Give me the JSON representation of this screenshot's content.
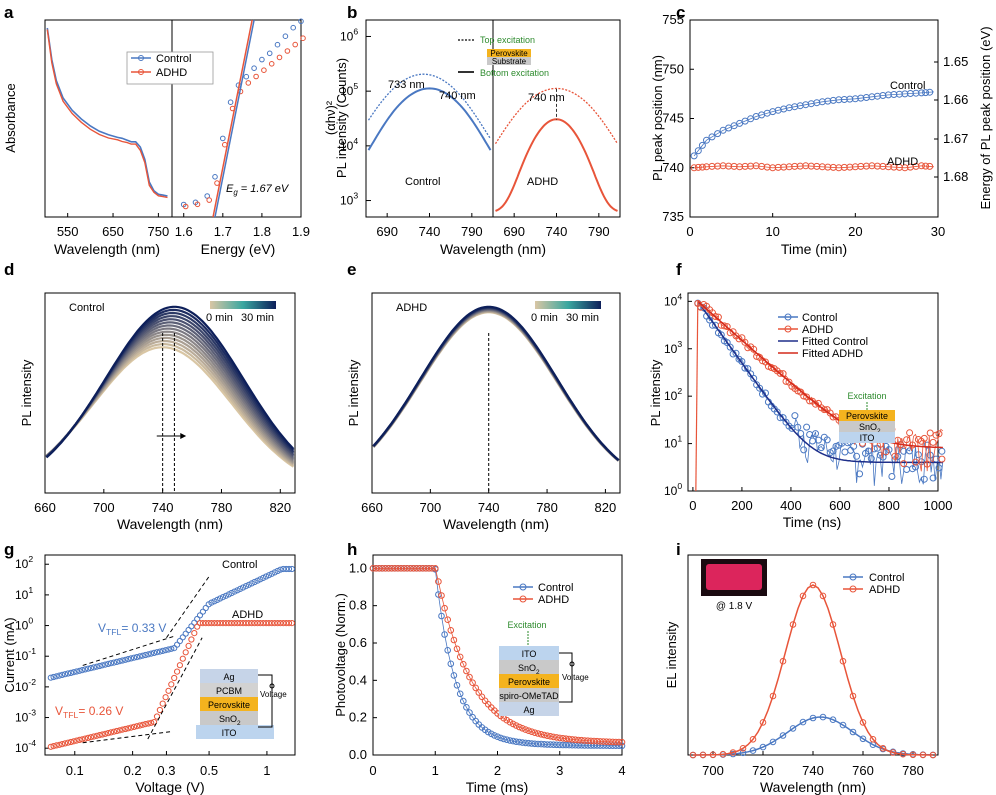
{
  "colors": {
    "control": "#4a78c2",
    "adhd": "#e8553a",
    "perovskite": "#f4b31e",
    "sno2": "#c9c9c9",
    "ito": "#bcd4ee",
    "ag": "#c6d4e8",
    "pcbm": "#d2d2d2",
    "spiro": "#c9c9c9",
    "fit_line": "#1e2f8a",
    "fit_line_red": "#d42a1c",
    "excitation": "#2e8b2e",
    "el_inset_bg": "#1a0a10",
    "el_inset_glow": "#ff2a6a"
  },
  "chart_data": [
    {
      "panel": "a",
      "type": "line",
      "xlabel": "Wavelength (nm)",
      "xlabel_right": "Energy (eV)",
      "ylabel": "Absorbance",
      "ylabel_right": "(αhν)²",
      "x_ticks": [
        "550",
        "650",
        "750"
      ],
      "x_ticks_right": [
        "1.6",
        "1.7",
        "1.8",
        "1.9"
      ],
      "legend": [
        "Control",
        "ADHD"
      ],
      "annotation_pre": "E",
      "annotation_sub": "g",
      "annotation_post": " = 1.67 eV",
      "absorbance_wavelength": [
        505,
        515,
        525,
        540,
        560,
        580,
        600,
        620,
        640,
        660,
        670,
        680,
        690,
        700,
        710,
        720,
        730,
        740,
        750,
        760,
        770
      ],
      "absorbance_control": [
        1.0,
        0.82,
        0.7,
        0.6,
        0.53,
        0.48,
        0.44,
        0.41,
        0.39,
        0.375,
        0.37,
        0.36,
        0.35,
        0.35,
        0.32,
        0.25,
        0.12,
        0.07,
        0.05,
        0.045,
        0.04
      ],
      "absorbance_adhd": [
        1.0,
        0.81,
        0.69,
        0.59,
        0.52,
        0.47,
        0.43,
        0.4,
        0.38,
        0.37,
        0.36,
        0.355,
        0.345,
        0.345,
        0.31,
        0.24,
        0.11,
        0.07,
        0.05,
        0.045,
        0.04
      ],
      "tauc_energy": [
        1.6,
        1.63,
        1.66,
        1.68,
        1.7,
        1.72,
        1.74,
        1.76,
        1.78,
        1.8,
        1.82,
        1.84,
        1.86,
        1.88,
        1.9
      ],
      "tauc_control": [
        0.04,
        0.05,
        0.08,
        0.17,
        0.35,
        0.52,
        0.6,
        0.64,
        0.68,
        0.72,
        0.75,
        0.79,
        0.83,
        0.87,
        0.9
      ],
      "tauc_adhd": [
        0.04,
        0.05,
        0.07,
        0.15,
        0.33,
        0.5,
        0.58,
        0.62,
        0.65,
        0.68,
        0.71,
        0.74,
        0.77,
        0.8,
        0.83
      ]
    },
    {
      "panel": "b",
      "type": "line",
      "xlabel": "Wavelength (nm)",
      "ylabel": "PL intensity (Counts)",
      "yscale": "log",
      "ylim": [
        500,
        2000000
      ],
      "y_ticks": [
        "10",
        "10",
        "10",
        "10"
      ],
      "y_tick_exp": [
        "3",
        "4",
        "5",
        "6"
      ],
      "x_ticks": [
        "690",
        "740",
        "790"
      ],
      "labels": {
        "left": "Control",
        "right": "ADHD",
        "peak_733": "733 nm",
        "peak_740_left": "740 nm",
        "peak_740_right": "740 nm",
        "top_excitation": "Top excitation",
        "bottom_excitation": "Bottom excitation",
        "perovskite": "Perovskite",
        "substrate": "Substrate"
      },
      "peaks": {
        "control_top": [
          733,
          200000
        ],
        "control_bottom": [
          740,
          110000
        ],
        "adhd_top": [
          740,
          110000
        ],
        "adhd_bottom": [
          740,
          30000
        ]
      }
    },
    {
      "panel": "c",
      "type": "scatter",
      "xlabel": "Time (min)",
      "ylabel": "PL peak position (nm)",
      "ylabel_right": "Energy of PL peak position (eV)",
      "xlim": [
        0,
        30
      ],
      "ylim": [
        735,
        755
      ],
      "x_ticks": [
        "0",
        "10",
        "20",
        "30"
      ],
      "y_ticks": [
        "735",
        "740",
        "745",
        "750",
        "755"
      ],
      "y_ticks_right": [
        "1.65",
        "1.66",
        "1.67",
        "1.68"
      ],
      "series": [
        {
          "name": "Control",
          "x": [
            0.5,
            2,
            4,
            6,
            8,
            10,
            12,
            14,
            16,
            18,
            20,
            22,
            24,
            26,
            28,
            29.5
          ],
          "y": [
            741.2,
            742.8,
            743.8,
            744.5,
            745.2,
            745.7,
            746.1,
            746.4,
            746.7,
            746.9,
            747.0,
            747.2,
            747.4,
            747.5,
            747.6,
            747.7
          ]
        },
        {
          "name": "ADHD",
          "x": [
            0.5,
            2,
            4,
            6,
            8,
            10,
            12,
            14,
            16,
            18,
            20,
            22,
            24,
            26,
            28,
            29.5
          ],
          "y": [
            740.0,
            740.1,
            740.2,
            740.1,
            740.2,
            740.0,
            740.1,
            740.2,
            740.1,
            740.0,
            740.1,
            740.2,
            740.1,
            740.0,
            740.2,
            740.1
          ]
        }
      ]
    },
    {
      "panel": "d",
      "type": "line",
      "xlabel": "Wavelength (nm)",
      "ylabel": "PL intensity",
      "label": "Control",
      "cbar_min": "0 min",
      "cbar_max": "30 min",
      "x_ticks": [
        "660",
        "700",
        "740",
        "780",
        "820"
      ],
      "xlim": [
        660,
        830
      ]
    },
    {
      "panel": "e",
      "type": "line",
      "xlabel": "Wavelength (nm)",
      "ylabel": "PL intensity",
      "label": "ADHD",
      "cbar_min": "0 min",
      "cbar_max": "30 min",
      "x_ticks": [
        "660",
        "700",
        "740",
        "780",
        "820"
      ],
      "xlim": [
        660,
        830
      ]
    },
    {
      "panel": "f",
      "type": "scatter",
      "xlabel": "Time (ns)",
      "ylabel": "PL intensity",
      "yscale": "log",
      "xlim": [
        0,
        1000
      ],
      "x_ticks": [
        "0",
        "200",
        "400",
        "600",
        "800",
        "1000"
      ],
      "y_ticks": [
        "10",
        "10",
        "10",
        "10",
        "10"
      ],
      "y_tick_exp": [
        "0",
        "1",
        "2",
        "3",
        "4"
      ],
      "legend": [
        "Control",
        "ADHD",
        "Fitted Control",
        "Fitted ADHD"
      ],
      "inset": {
        "excitation": "Excitation",
        "perovskite": "Perovskite",
        "sno2_pre": "SnO",
        "sno2_sub": "2",
        "ito": "ITO"
      }
    },
    {
      "panel": "g",
      "type": "scatter",
      "xlabel": "Voltage (V)",
      "ylabel": "Current (mA)",
      "xscale": "log",
      "yscale": "log",
      "x_ticks": [
        "0.1",
        "0.2",
        "0.3",
        "0.5",
        "1"
      ],
      "y_ticks": [
        "10",
        "10",
        "10",
        "10",
        "10",
        "10",
        "10"
      ],
      "y_tick_exp": [
        "-4",
        "-3",
        "-2",
        "-1",
        "0",
        "1",
        "2"
      ],
      "labels": {
        "control": "Control",
        "adhd": "ADHD",
        "vtfl_control_pre": "V",
        "vtfl_sub": "TFL",
        "vtfl_control_post": "= 0.33 V",
        "vtfl_adhd_pre": "V",
        "vtfl_adhd_post": "= 0.26 V"
      },
      "inset": {
        "ag": "Ag",
        "pcbm": "PCBM",
        "perovskite": "Perovskite",
        "sno2_pre": "SnO",
        "sno2_sub": "2",
        "ito": "ITO",
        "voltage": "Voltage"
      }
    },
    {
      "panel": "h",
      "type": "scatter",
      "xlabel": "Time (ms)",
      "ylabel": "Photovoltage (Norm.)",
      "xlim": [
        0,
        4
      ],
      "ylim": [
        0,
        1.05
      ],
      "x_ticks": [
        "0",
        "1",
        "2",
        "3",
        "4"
      ],
      "y_ticks": [
        "0.0",
        "0.2",
        "0.4",
        "0.6",
        "0.8",
        "1.0"
      ],
      "legend": [
        "Control",
        "ADHD"
      ],
      "inset": {
        "excitation": "Excitation",
        "ito": "ITO",
        "sno2_pre": "SnO",
        "sno2_sub": "2",
        "perovskite": "Perovskite",
        "spiro": "spiro-OMeTAD",
        "ag": "Ag",
        "voltage": "Voltage"
      }
    },
    {
      "panel": "i",
      "type": "line",
      "xlabel": "Wavelength (nm)",
      "ylabel": "EL intensity",
      "xlim": [
        690,
        790
      ],
      "x_ticks": [
        "700",
        "720",
        "740",
        "760",
        "780"
      ],
      "legend": [
        "Control",
        "ADHD"
      ],
      "inset_label": "@ 1.8 V",
      "series": [
        {
          "name": "Control",
          "peak_x": 743,
          "peak_y": 0.19
        },
        {
          "name": "ADHD",
          "peak_x": 740,
          "peak_y": 0.85
        }
      ]
    }
  ],
  "panel_letters": [
    "a",
    "b",
    "c",
    "d",
    "e",
    "f",
    "g",
    "h",
    "i"
  ]
}
